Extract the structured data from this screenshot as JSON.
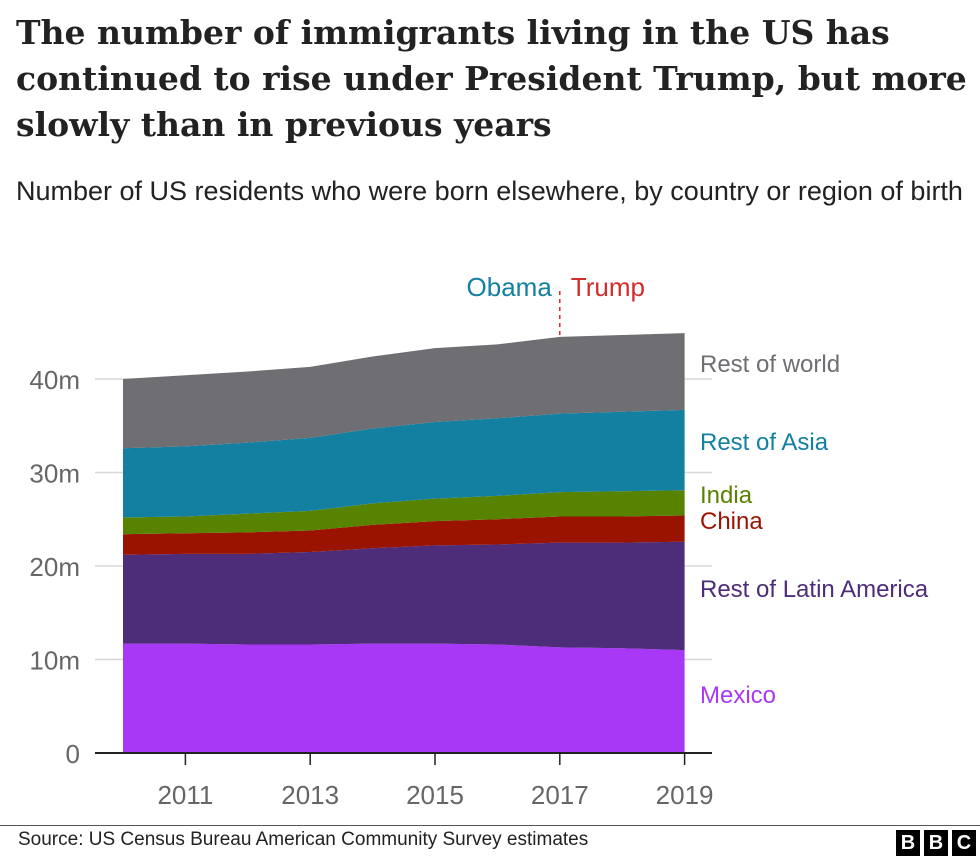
{
  "title": "The number of immigrants living in the US has continued to rise under President Trump, but more slowly than in previous years",
  "subtitle": "Number of US residents who were born elsewhere, by country or region of birth",
  "source": "Source: US Census Bureau American Community Survey estimates",
  "logo": [
    "B",
    "B",
    "C"
  ],
  "annotation": {
    "left": "Obama",
    "right": "Trump",
    "year": 2017,
    "left_color": "#1380a1",
    "right_color": "#d42b2b"
  },
  "chart_data": {
    "type": "area",
    "stacked": true,
    "title": "",
    "xlabel": "",
    "ylabel": "",
    "x": [
      2010,
      2011,
      2012,
      2013,
      2014,
      2015,
      2016,
      2017,
      2018,
      2019
    ],
    "xticks": [
      "2011",
      "2013",
      "2015",
      "2017",
      "2019"
    ],
    "yticks": [
      "0",
      "10m",
      "20m",
      "30m",
      "40m"
    ],
    "ylim": [
      0,
      45
    ],
    "grid": true,
    "series": [
      {
        "name": "Mexico",
        "color": "#a838f6",
        "values": [
          11.7,
          11.7,
          11.6,
          11.6,
          11.7,
          11.7,
          11.6,
          11.3,
          11.2,
          11.0
        ]
      },
      {
        "name": "Rest of Latin America",
        "color": "#4d2c7a",
        "values": [
          9.5,
          9.6,
          9.7,
          9.9,
          10.2,
          10.5,
          10.7,
          11.2,
          11.3,
          11.6
        ]
      },
      {
        "name": "China",
        "color": "#9a1300",
        "values": [
          2.2,
          2.2,
          2.3,
          2.3,
          2.5,
          2.6,
          2.7,
          2.8,
          2.8,
          2.8
        ]
      },
      {
        "name": "India",
        "color": "#588300",
        "values": [
          1.8,
          1.8,
          2.0,
          2.1,
          2.3,
          2.4,
          2.5,
          2.6,
          2.7,
          2.7
        ]
      },
      {
        "name": "Rest of Asia",
        "color": "#1380a1",
        "values": [
          7.4,
          7.5,
          7.6,
          7.8,
          8.0,
          8.2,
          8.3,
          8.4,
          8.5,
          8.6
        ]
      },
      {
        "name": "Rest of world",
        "color": "#6e6e73",
        "values": [
          7.4,
          7.6,
          7.6,
          7.6,
          7.7,
          7.9,
          7.9,
          8.2,
          8.2,
          8.2
        ]
      }
    ]
  }
}
